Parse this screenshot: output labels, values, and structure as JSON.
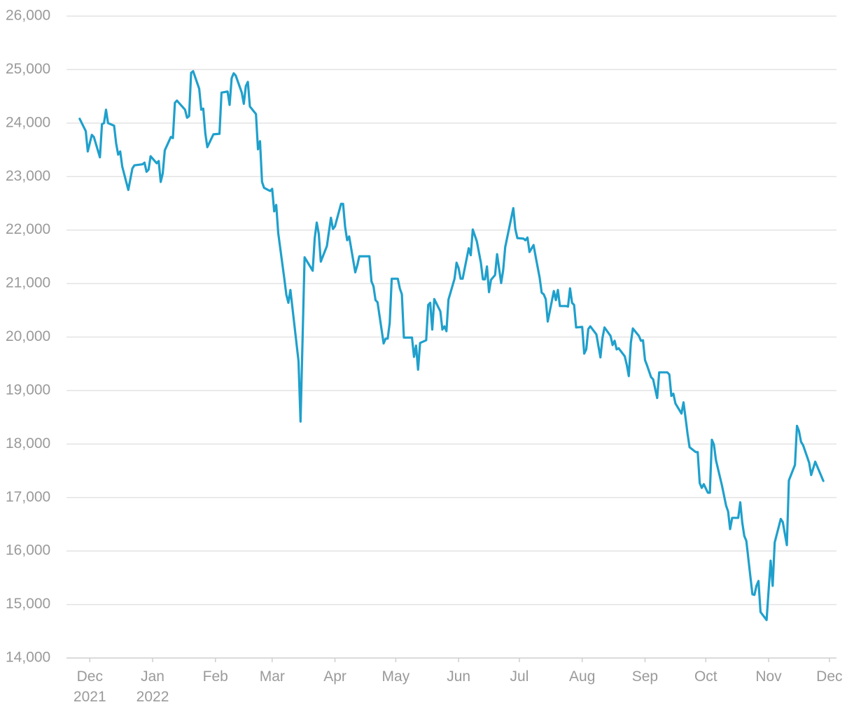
{
  "chart_data": {
    "type": "line",
    "color": "#1fa0cc",
    "grid": true,
    "xlim": [
      -11.5,
      368.5
    ],
    "ylim": [
      14000,
      26000
    ],
    "xticks": [
      {
        "value": 0,
        "label": "Dec\n2021"
      },
      {
        "value": 31,
        "label": "Jan\n2022"
      },
      {
        "value": 62,
        "label": "Feb"
      },
      {
        "value": 90,
        "label": "Mar"
      },
      {
        "value": 121,
        "label": "Apr"
      },
      {
        "value": 151,
        "label": "May"
      },
      {
        "value": 182,
        "label": "Jun"
      },
      {
        "value": 212,
        "label": "Jul"
      },
      {
        "value": 243,
        "label": "Aug"
      },
      {
        "value": 274,
        "label": "Sep"
      },
      {
        "value": 304,
        "label": "Oct"
      },
      {
        "value": 335,
        "label": "Nov"
      },
      {
        "value": 365,
        "label": "Dec"
      }
    ],
    "yticks": [
      {
        "value": 14000,
        "label": "14,000"
      },
      {
        "value": 15000,
        "label": "15,000"
      },
      {
        "value": 16000,
        "label": "16,000"
      },
      {
        "value": 17000,
        "label": "17,000"
      },
      {
        "value": 18000,
        "label": "18,000"
      },
      {
        "value": 19000,
        "label": "19,000"
      },
      {
        "value": 20000,
        "label": "20,000"
      },
      {
        "value": 21000,
        "label": "21,000"
      },
      {
        "value": 22000,
        "label": "22,000"
      },
      {
        "value": 23000,
        "label": "23,000"
      },
      {
        "value": 24000,
        "label": "24,000"
      },
      {
        "value": 25000,
        "label": "25,000"
      },
      {
        "value": 26000,
        "label": "26,000"
      }
    ],
    "x": [
      -5,
      -2,
      -1,
      1,
      2,
      5,
      6,
      7,
      8,
      9,
      12,
      13,
      14,
      15,
      16,
      19,
      20,
      21,
      22,
      26,
      27,
      28,
      29,
      30,
      33,
      34,
      35,
      36,
      37,
      40,
      41,
      42,
      43,
      47,
      48,
      49,
      50,
      51,
      54,
      55,
      56,
      57,
      58,
      61,
      64,
      65,
      68,
      69,
      70,
      71,
      72,
      75,
      76,
      77,
      78,
      79,
      82,
      83,
      84,
      85,
      86,
      89,
      90,
      91,
      92,
      93,
      96,
      97,
      98,
      99,
      103,
      104,
      106,
      110,
      111,
      112,
      113,
      114,
      117,
      119,
      120,
      121,
      124,
      125,
      126,
      127,
      128,
      131,
      132,
      133,
      138,
      139,
      140,
      141,
      142,
      145,
      146,
      147,
      148,
      149,
      152,
      153,
      154,
      155,
      159,
      160,
      161,
      162,
      163,
      166,
      167,
      168,
      169,
      170,
      173,
      174,
      175,
      176,
      177,
      180,
      181,
      182,
      183,
      184,
      187,
      188,
      189,
      191,
      193,
      194,
      195,
      196,
      197,
      198,
      200,
      201,
      203,
      204,
      205,
      209,
      210,
      211,
      214,
      215,
      216,
      217,
      219,
      220,
      222,
      223,
      224,
      225,
      226,
      229,
      230,
      231,
      232,
      235,
      236,
      237,
      238,
      239,
      240,
      243,
      244,
      245,
      246,
      247,
      250,
      252,
      253,
      254,
      257,
      258,
      259,
      260,
      261,
      264,
      265,
      266,
      267,
      268,
      271,
      272,
      273,
      274,
      275,
      277,
      278,
      280,
      281,
      285,
      286,
      287,
      288,
      289,
      292,
      293,
      294,
      295,
      296,
      299,
      300,
      301,
      302,
      303,
      305,
      306,
      307,
      308,
      309,
      312,
      314,
      315,
      316,
      317,
      320,
      321,
      322,
      323,
      324,
      327,
      328,
      329,
      330,
      331,
      334,
      336,
      337,
      338,
      341,
      342,
      344,
      345,
      348,
      349,
      350,
      351,
      352,
      355,
      356,
      358,
      362
    ],
    "values": [
      24080,
      23850,
      23470,
      23780,
      23740,
      23360,
      23980,
      24000,
      24250,
      24000,
      23950,
      23620,
      23410,
      23470,
      23190,
      22750,
      22950,
      23150,
      23210,
      23230,
      23260,
      23090,
      23130,
      23380,
      23250,
      23290,
      22900,
      23060,
      23490,
      23740,
      23720,
      24380,
      24420,
      24250,
      24100,
      24130,
      24940,
      24970,
      24640,
      24250,
      24270,
      23810,
      23550,
      23790,
      23800,
      24570,
      24590,
      24340,
      24840,
      24930,
      24890,
      24570,
      24360,
      24690,
      24770,
      24310,
      24170,
      23510,
      23660,
      22900,
      22790,
      22730,
      22770,
      22350,
      22470,
      21940,
      21090,
      20790,
      20640,
      20880,
      19550,
      18420,
      21490,
      21240,
      21850,
      22140,
      21930,
      21410,
      21700,
      22230,
      22020,
      22070,
      22490,
      22490,
      22060,
      21810,
      21880,
      21210,
      21340,
      21510,
      21510,
      21040,
      20950,
      20690,
      20650,
      19880,
      19970,
      19970,
      20260,
      21090,
      21090,
      20910,
      20800,
      19990,
      19990,
      19630,
      19840,
      19390,
      19890,
      19940,
      20600,
      20640,
      20140,
      20710,
      20480,
      20140,
      20200,
      20110,
      20700,
      21090,
      21390,
      21290,
      21090,
      21090,
      21660,
      21530,
      22010,
      21790,
      21390,
      21080,
      21080,
      21320,
      20840,
      21070,
      21160,
      21550,
      21010,
      21250,
      21680,
      22410,
      22020,
      21850,
      21840,
      21810,
      21860,
      21590,
      21720,
      21510,
      21110,
      20830,
      20800,
      20710,
      20290,
      20860,
      20690,
      20880,
      20580,
      20580,
      20570,
      20910,
      20640,
      20600,
      20180,
      20190,
      19690,
      19770,
      20150,
      20200,
      20050,
      19620,
      19980,
      20180,
      20020,
      19850,
      19930,
      19770,
      19790,
      19640,
      19480,
      19270,
      19890,
      20160,
      20020,
      19930,
      19940,
      19570,
      19470,
      19250,
      19210,
      18860,
      19340,
      19340,
      19300,
      18900,
      18940,
      18760,
      18570,
      18780,
      18490,
      18190,
      17940,
      17850,
      17850,
      17270,
      17180,
      17250,
      17090,
      17090,
      18080,
      17990,
      17700,
      17220,
      16850,
      16740,
      16410,
      16620,
      16620,
      16910,
      16530,
      16280,
      16190,
      15190,
      15180,
      15350,
      15440,
      14860,
      14710,
      15820,
      15350,
      16160,
      16600,
      16540,
      16110,
      17320,
      17610,
      18340,
      18240,
      18040,
      17980,
      17650,
      17420,
      17670,
      17310
    ]
  }
}
